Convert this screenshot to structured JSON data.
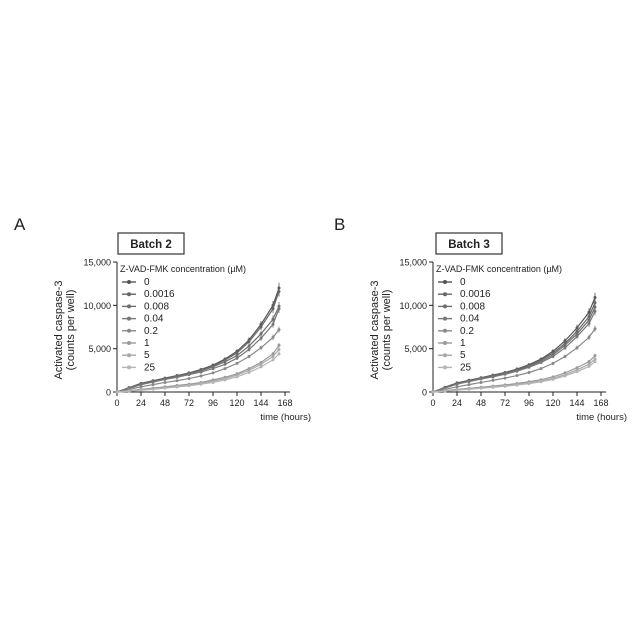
{
  "chart_data": [
    {
      "type": "line",
      "panel_label": "A",
      "title": "Batch 2",
      "ylabel_lines": [
        "Activated caspase-3",
        "(counts per well)"
      ],
      "xlabel": "time (hours)",
      "legend_title": "Z-VAD-FMK concentration (µM)",
      "legend_placement": "top-left",
      "xlim": [
        0,
        168
      ],
      "ylim": [
        0,
        15000
      ],
      "xticks": [
        0,
        24,
        48,
        72,
        96,
        120,
        144,
        168
      ],
      "yticks": [
        0,
        5000,
        10000,
        15000
      ],
      "ytick_labels": [
        "0",
        "5,000",
        "10,000",
        "15,000"
      ],
      "grid": false,
      "x": [
        0,
        12,
        24,
        36,
        48,
        60,
        72,
        84,
        96,
        108,
        120,
        132,
        144,
        156,
        162
      ],
      "series": [
        {
          "name": "0",
          "color": "#555555",
          "values": [
            0,
            500,
            1000,
            1300,
            1600,
            1900,
            2200,
            2600,
            3100,
            3800,
            4700,
            6000,
            7800,
            10000,
            12000
          ]
        },
        {
          "name": "0.0016",
          "color": "#666666",
          "values": [
            0,
            450,
            950,
            1250,
            1550,
            1850,
            2150,
            2550,
            3000,
            3700,
            4500,
            5800,
            7500,
            9600,
            11600
          ]
        },
        {
          "name": "0.008",
          "color": "#6e6e6e",
          "values": [
            0,
            420,
            900,
            1200,
            1500,
            1800,
            2100,
            2450,
            2900,
            3500,
            4200,
            5300,
            6700,
            8400,
            9900
          ]
        },
        {
          "name": "0.04",
          "color": "#777777",
          "values": [
            0,
            400,
            850,
            1150,
            1450,
            1700,
            2000,
            2300,
            2700,
            3200,
            3900,
            4900,
            6200,
            7800,
            9600
          ]
        },
        {
          "name": "0.2",
          "color": "#888888",
          "values": [
            0,
            300,
            600,
            850,
            1100,
            1300,
            1550,
            1850,
            2200,
            2700,
            3300,
            4100,
            5100,
            6300,
            7200
          ]
        },
        {
          "name": "1",
          "color": "#999999",
          "values": [
            0,
            150,
            300,
            450,
            600,
            750,
            900,
            1100,
            1400,
            1700,
            2100,
            2700,
            3400,
            4400,
            5400
          ]
        },
        {
          "name": "5",
          "color": "#a8a8a8",
          "values": [
            0,
            100,
            250,
            380,
            500,
            650,
            800,
            1000,
            1250,
            1550,
            1950,
            2500,
            3200,
            4100,
            4900
          ]
        },
        {
          "name": "25",
          "color": "#b5b5b5",
          "values": [
            0,
            80,
            200,
            320,
            450,
            580,
            720,
            900,
            1100,
            1400,
            1750,
            2250,
            2900,
            3700,
            4400
          ]
        }
      ]
    },
    {
      "type": "line",
      "panel_label": "B",
      "title": "Batch 3",
      "ylabel_lines": [
        "Activated caspase-3",
        "(counts per well)"
      ],
      "xlabel": "time (hours)",
      "legend_title": "Z-VAD-FMK concentration (µM)",
      "legend_placement": "top-left",
      "xlim": [
        0,
        168
      ],
      "ylim": [
        0,
        15000
      ],
      "xticks": [
        0,
        24,
        48,
        72,
        96,
        120,
        144,
        168
      ],
      "yticks": [
        0,
        5000,
        10000,
        15000
      ],
      "ytick_labels": [
        "0",
        "5,000",
        "10,000",
        "15,000"
      ],
      "grid": false,
      "x": [
        0,
        12,
        24,
        36,
        48,
        60,
        72,
        84,
        96,
        108,
        120,
        132,
        144,
        156,
        162
      ],
      "series": [
        {
          "name": "0",
          "color": "#555555",
          "values": [
            0,
            550,
            1050,
            1350,
            1650,
            1950,
            2250,
            2650,
            3150,
            3800,
            4700,
            5900,
            7400,
            9200,
            10900
          ]
        },
        {
          "name": "0.0016",
          "color": "#666666",
          "values": [
            0,
            500,
            1000,
            1300,
            1600,
            1900,
            2200,
            2600,
            3050,
            3700,
            4500,
            5600,
            7000,
            8700,
            10300
          ]
        },
        {
          "name": "0.008",
          "color": "#6e6e6e",
          "values": [
            0,
            480,
            950,
            1250,
            1550,
            1850,
            2150,
            2500,
            2950,
            3550,
            4300,
            5400,
            6700,
            8300,
            9800
          ]
        },
        {
          "name": "0.04",
          "color": "#777777",
          "values": [
            0,
            450,
            900,
            1200,
            1500,
            1750,
            2050,
            2400,
            2850,
            3400,
            4100,
            5100,
            6400,
            7900,
            9300
          ]
        },
        {
          "name": "0.2",
          "color": "#888888",
          "values": [
            0,
            300,
            600,
            850,
            1100,
            1350,
            1600,
            1900,
            2250,
            2700,
            3300,
            4100,
            5100,
            6300,
            7300
          ]
        },
        {
          "name": "1",
          "color": "#999999",
          "values": [
            0,
            150,
            300,
            420,
            550,
            680,
            820,
            980,
            1180,
            1420,
            1750,
            2200,
            2800,
            3500,
            4200
          ]
        },
        {
          "name": "5",
          "color": "#a8a8a8",
          "values": [
            0,
            120,
            250,
            360,
            480,
            600,
            730,
            880,
            1060,
            1280,
            1580,
            2000,
            2550,
            3200,
            3800
          ]
        },
        {
          "name": "25",
          "color": "#b5b5b5",
          "values": [
            0,
            100,
            220,
            320,
            430,
            540,
            660,
            800,
            970,
            1180,
            1450,
            1850,
            2350,
            2950,
            3500
          ]
        }
      ]
    }
  ]
}
